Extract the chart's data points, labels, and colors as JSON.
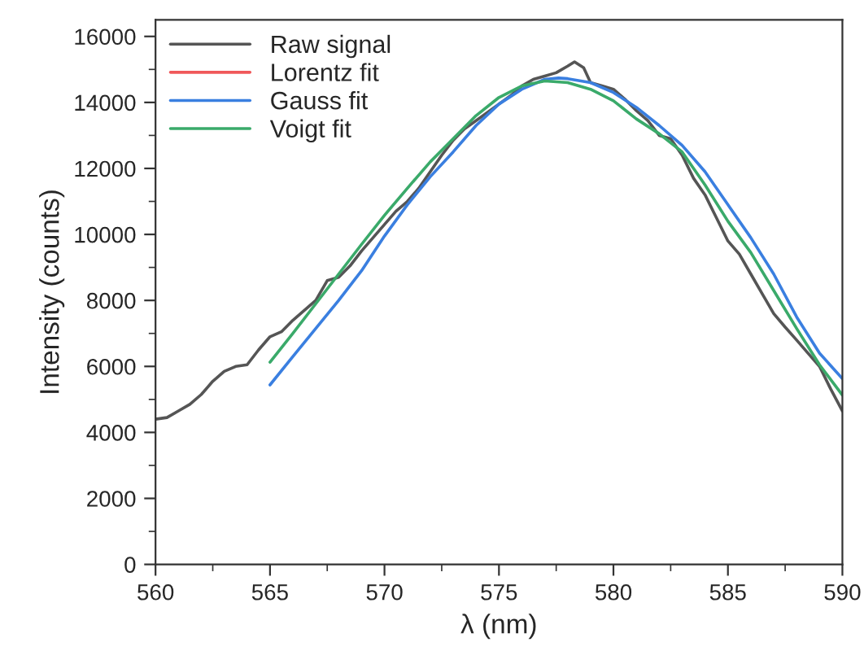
{
  "chart_data": {
    "type": "line",
    "xlabel": "λ (nm)",
    "ylabel": "Intensity (counts)",
    "xlim": [
      560,
      590
    ],
    "xticks": [
      560,
      565,
      570,
      575,
      580,
      585,
      590
    ],
    "ylim": [
      0,
      16500
    ],
    "yticks": [
      0,
      2000,
      4000,
      6000,
      8000,
      10000,
      12000,
      14000,
      16000
    ],
    "grid": false,
    "legend": "top left",
    "marker": "none",
    "line_style": "solid",
    "series": [
      {
        "name": "Raw signal",
        "color": "#555555",
        "x": [
          560,
          560.5,
          561,
          561.5,
          562,
          562.5,
          563,
          563.5,
          564,
          564.5,
          565,
          565.5,
          566,
          566.5,
          567,
          567.5,
          568,
          568.5,
          569,
          569.5,
          570,
          570.5,
          571,
          571.5,
          572,
          572.5,
          573,
          573.5,
          574,
          575,
          575.5,
          576,
          576.5,
          577,
          577.5,
          578,
          578.3,
          578.7,
          579,
          579.5,
          580,
          580.5,
          581,
          581.5,
          582,
          582.5,
          583,
          583.5,
          584,
          584.5,
          585,
          585.5,
          586,
          586.5,
          587,
          587.5,
          588,
          588.5,
          589,
          589.5,
          590
        ],
        "values": [
          4400,
          4450,
          4650,
          4850,
          5150,
          5550,
          5850,
          6000,
          6050,
          6500,
          6900,
          7050,
          7400,
          7700,
          8000,
          8600,
          8700,
          9050,
          9500,
          9900,
          10300,
          10700,
          11000,
          11400,
          11900,
          12400,
          12850,
          13200,
          13450,
          13950,
          14200,
          14500,
          14700,
          14800,
          14900,
          15100,
          15230,
          15050,
          14600,
          14500,
          14400,
          14100,
          13750,
          13450,
          13000,
          12900,
          12400,
          11700,
          11200,
          10500,
          9800,
          9400,
          8800,
          8200,
          7600,
          7190,
          6800,
          6400,
          6000,
          5300,
          4650
        ]
      },
      {
        "name": "Lorentz fit",
        "color": "#f0585a"
      },
      {
        "name": "Gauss fit",
        "color": "#3a7fe0",
        "x": [
          565,
          566,
          567,
          568,
          569,
          570,
          571,
          572,
          573,
          574,
          575,
          576,
          577,
          577.6,
          578,
          579,
          580,
          581,
          582,
          583,
          584,
          585,
          586,
          587,
          588,
          589,
          590
        ],
        "values": [
          5440,
          6300,
          7150,
          8000,
          8900,
          9950,
          10900,
          11750,
          12500,
          13300,
          13950,
          14400,
          14700,
          14740,
          14720,
          14600,
          14300,
          13850,
          13300,
          12700,
          11900,
          10900,
          9900,
          8800,
          7500,
          6400,
          5630
        ]
      },
      {
        "name": "Voigt fit",
        "color": "#3aaa6a",
        "x": [
          565,
          566,
          567,
          568,
          569,
          570,
          571,
          572,
          573,
          574,
          575,
          576,
          577,
          578,
          579,
          580,
          581,
          582,
          583,
          584,
          585,
          586,
          587,
          588,
          589,
          590
        ],
        "values": [
          6130,
          7000,
          7900,
          8800,
          9700,
          10580,
          11400,
          12200,
          12900,
          13600,
          14150,
          14500,
          14650,
          14600,
          14400,
          14050,
          13500,
          13050,
          12500,
          11500,
          10400,
          9450,
          8300,
          7150,
          6050,
          5130
        ]
      }
    ]
  }
}
